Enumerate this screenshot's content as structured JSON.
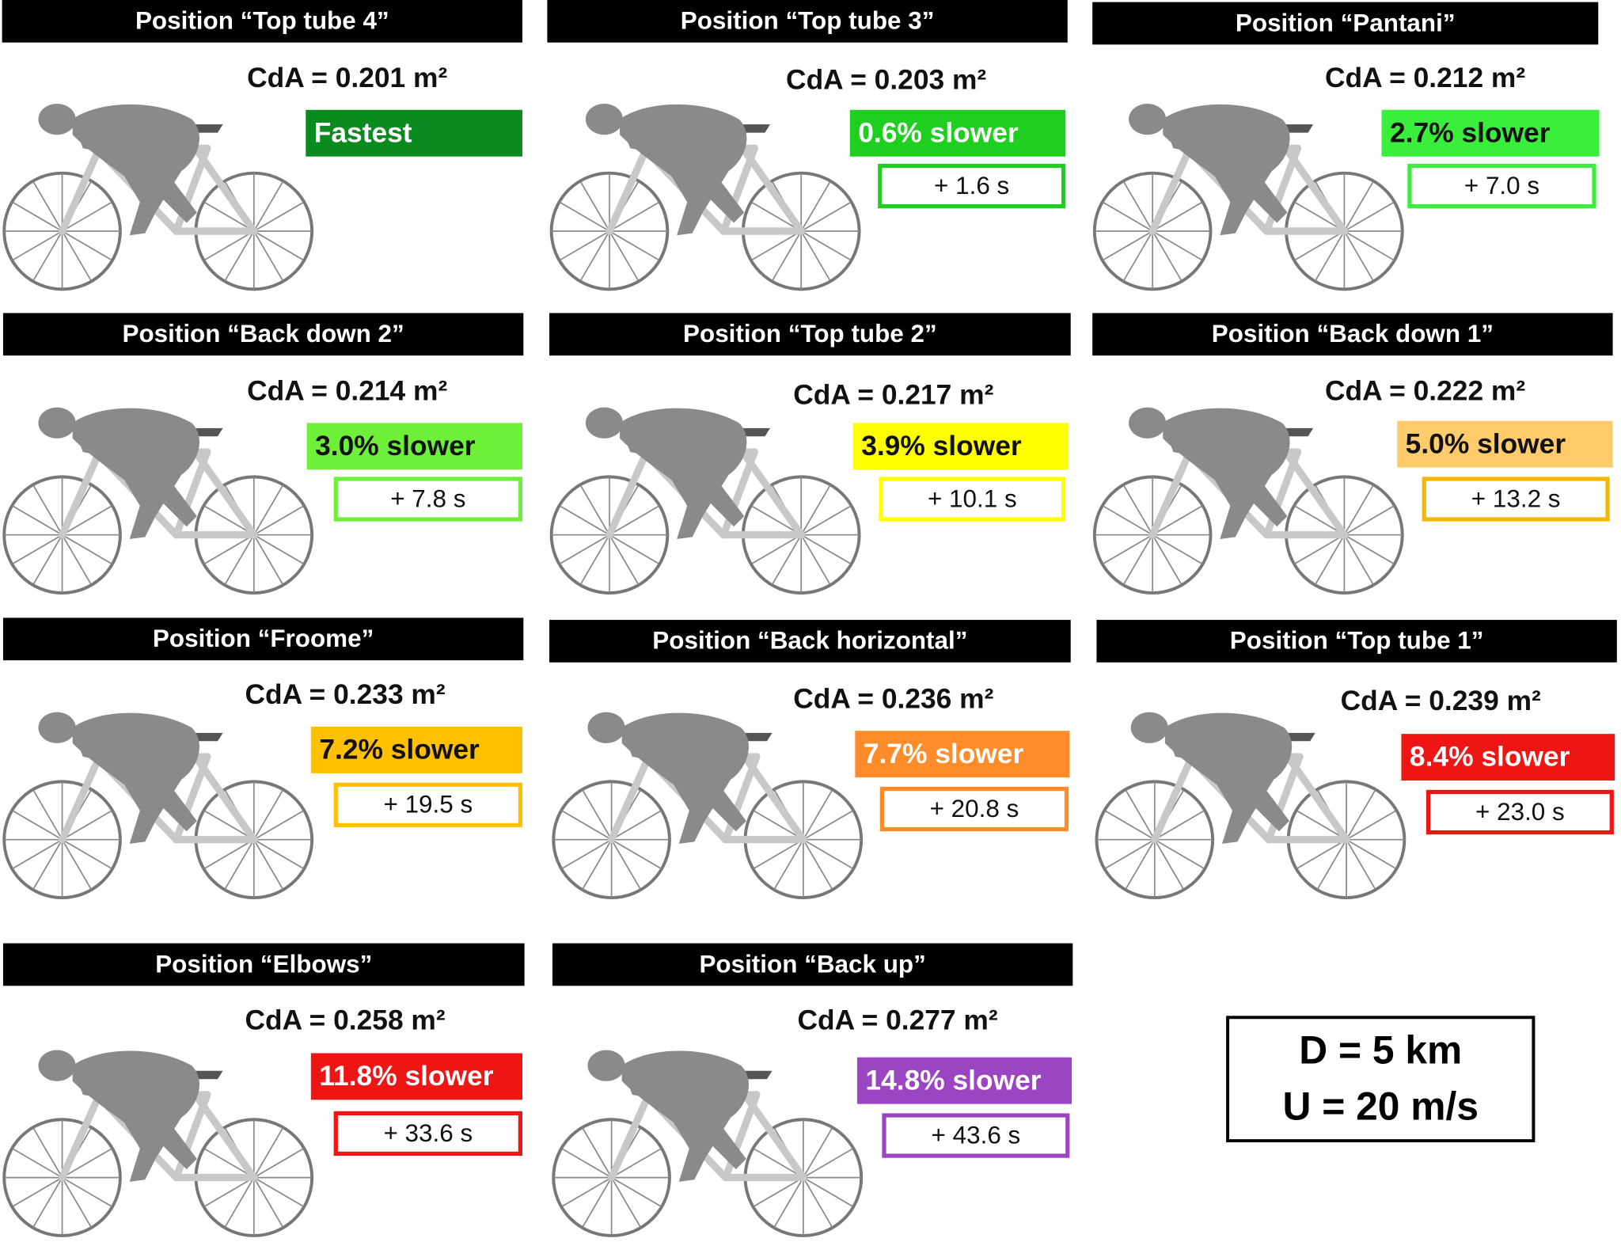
{
  "positions": [
    {
      "title": "Position “Top tube 4”",
      "cda": "CdA = 0.201 m²",
      "badge": "Fastest",
      "time": null,
      "color": "#0b8a1f",
      "text_color": "#ffffff"
    },
    {
      "title": "Position “Top tube 3”",
      "cda": "CdA = 0.203 m²",
      "badge": "0.6% slower",
      "time": "+ 1.6 s",
      "color": "#1fcf1f",
      "text_color": "#ffffff"
    },
    {
      "title": "Position “Pantani”",
      "cda": "CdA = 0.212 m²",
      "badge": "2.7% slower",
      "time": "+ 7.0 s",
      "color": "#3cee3c",
      "text_color": "#111111"
    },
    {
      "title": "Position “Back down 2”",
      "cda": "CdA = 0.214 m²",
      "badge": "3.0% slower",
      "time": "+ 7.8 s",
      "color": "#6ef03a",
      "text_color": "#111111"
    },
    {
      "title": "Position “Top tube 2”",
      "cda": "CdA = 0.217 m²",
      "badge": "3.9% slower",
      "time": "+ 10.1 s",
      "color": "#ffff00",
      "text_color": "#111111"
    },
    {
      "title": "Position “Back down 1”",
      "cda": "CdA = 0.222 m²",
      "badge": "5.0% slower",
      "time": "+ 13.2 s",
      "color": "#ffcb6b",
      "text_color": "#111111",
      "border": "#f5b800"
    },
    {
      "title": "Position “Froome”",
      "cda": "CdA = 0.233 m²",
      "badge": "7.2% slower",
      "time": "+ 19.5 s",
      "color": "#ffc000",
      "text_color": "#111111"
    },
    {
      "title": "Position “Back horizontal”",
      "cda": "CdA = 0.236 m²",
      "badge": "7.7% slower",
      "time": "+ 20.8 s",
      "color": "#ff8c2a",
      "text_color": "#ffffff"
    },
    {
      "title": "Position “Top tube 1”",
      "cda": "CdA = 0.239 m²",
      "badge": "8.4% slower",
      "time": "+ 23.0 s",
      "color": "#ee1515",
      "text_color": "#ffffff"
    },
    {
      "title": "Position “Elbows”",
      "cda": "CdA = 0.258 m²",
      "badge": "11.8% slower",
      "time": "+ 33.6 s",
      "color": "#ee1515",
      "text_color": "#ffffff"
    },
    {
      "title": "Position “Back up”",
      "cda": "CdA = 0.277 m²",
      "badge": "14.8% slower",
      "time": "+ 43.6 s",
      "color": "#9b45c2",
      "text_color": "#ffffff"
    }
  ],
  "info": {
    "distance": "D = 5 km",
    "speed": "U = 20 m/s"
  }
}
